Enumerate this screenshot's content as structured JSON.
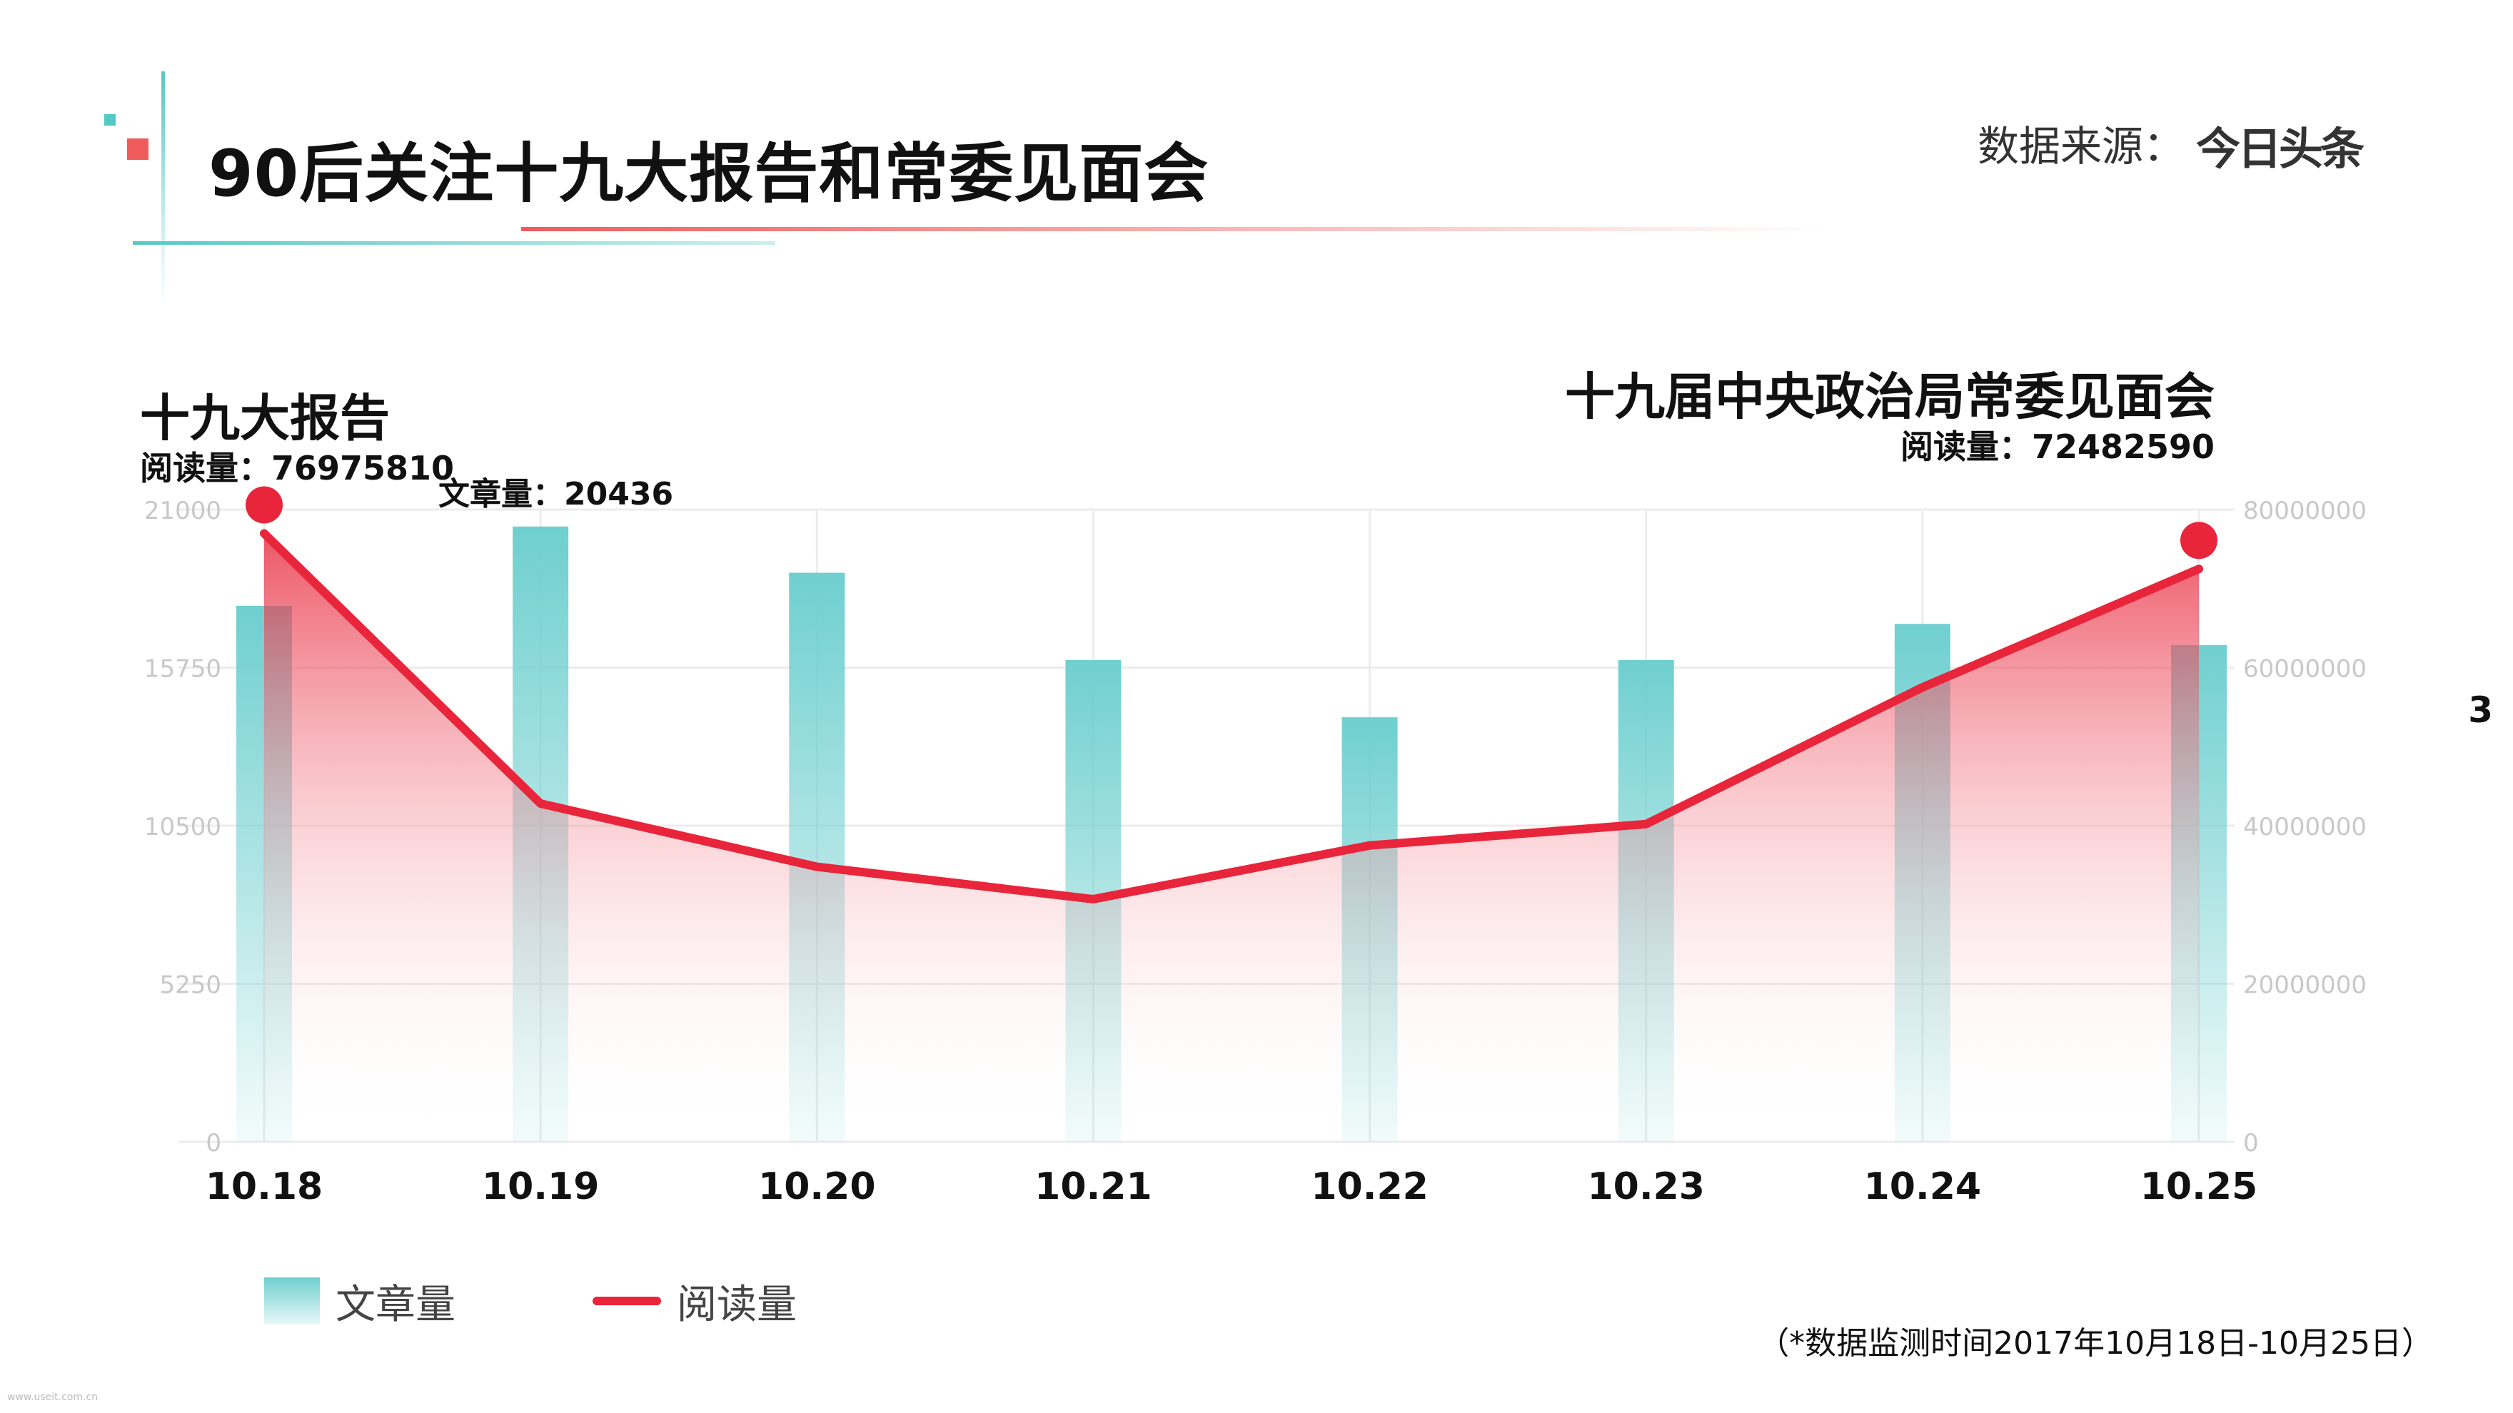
{
  "header": {
    "title": "90后关注十九大报告和常委见面会",
    "source_label": "数据来源：",
    "source_logo": "今日头条",
    "page_number": "3"
  },
  "annotations": {
    "left_heading": "十九大报告",
    "left_read": "阅读量：76975810",
    "article_note": "文章量：20436",
    "right_heading": "十九届中央政治局常委见面会",
    "right_read": "阅读量：72482590"
  },
  "legend": {
    "bar_label": "文章量",
    "line_label": "阅读量"
  },
  "footnote": "（*数据监测时间2017年10月18日-10月25日）",
  "watermark": "www.useit.com.cn",
  "colors": {
    "bar": "#6fcfcf",
    "line": "#e8253a",
    "title_accent": "#f05c5c",
    "teal_accent": "#56c8c4"
  },
  "chart_data": {
    "type": "bar",
    "categories": [
      "10.18",
      "10.19",
      "10.20",
      "10.21",
      "10.22",
      "10.23",
      "10.24",
      "10.25"
    ],
    "series": [
      {
        "name": "文章量",
        "type": "bar",
        "axis": "left",
        "values": [
          17800,
          20436,
          18900,
          16000,
          14100,
          16000,
          17200,
          16500
        ]
      },
      {
        "name": "阅读量",
        "type": "line",
        "axis": "right",
        "values": [
          76975810,
          42800000,
          34800000,
          30700000,
          37500000,
          40200000,
          57500000,
          72482590
        ]
      }
    ],
    "y_left": {
      "ticks": [
        0,
        5250,
        10500,
        15750,
        21000
      ],
      "ylim": [
        0,
        21000
      ]
    },
    "y_right": {
      "ticks": [
        0,
        20000000,
        40000000,
        60000000,
        80000000
      ],
      "ylim": [
        0,
        80000000
      ]
    },
    "highlight_points": [
      {
        "category": "10.18",
        "value": 76975810
      },
      {
        "category": "10.25",
        "value": 72482590
      }
    ],
    "grid": true
  }
}
